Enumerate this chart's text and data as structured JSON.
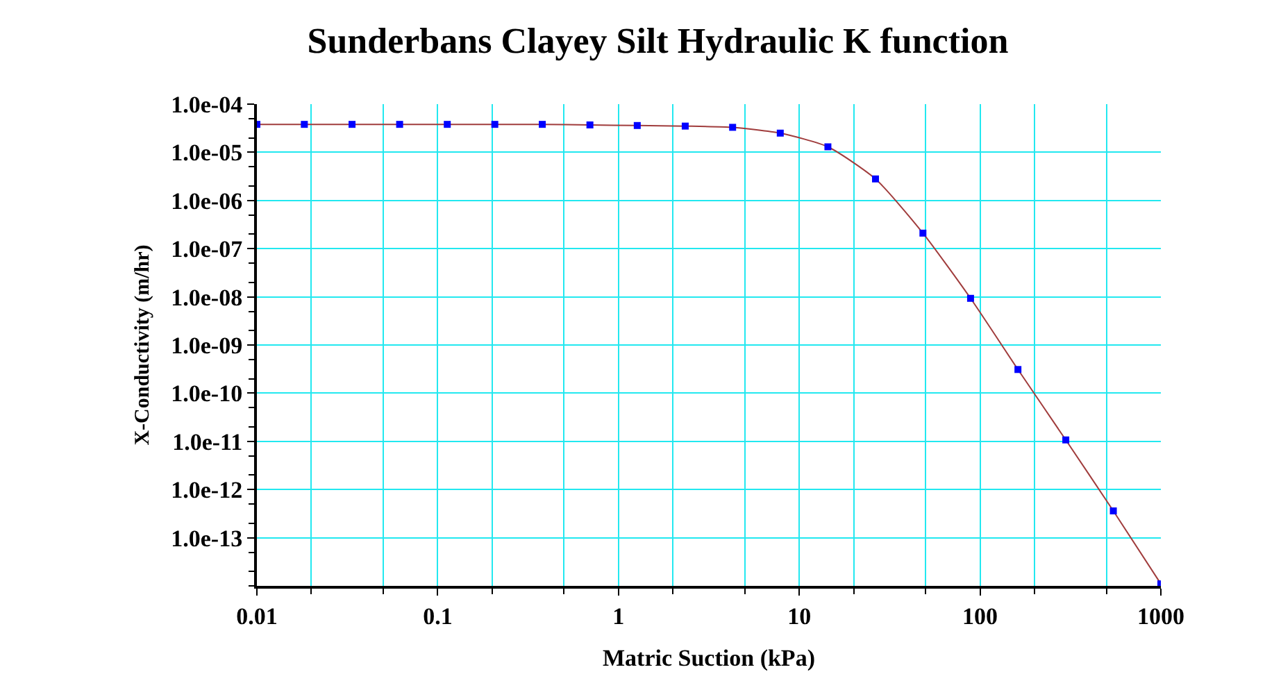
{
  "chart_data": {
    "type": "line",
    "title": "Sunderbans Clayey Silt Hydraulic K function",
    "xlabel": "Matric Suction (kPa)",
    "ylabel": "X-Conductivity (m/hr)",
    "log": "xy",
    "grid": true,
    "xlim": [
      0.01,
      1000
    ],
    "xticks": [
      0.01,
      0.1,
      1,
      10,
      100,
      1000
    ],
    "ylim": [
      1e-14,
      0.0001
    ],
    "yticks": [
      {
        "value": 0.0001,
        "label": "1.0e-04"
      },
      {
        "value": 1e-05,
        "label": "1.0e-05"
      },
      {
        "value": 1e-06,
        "label": "1.0e-06"
      },
      {
        "value": 1e-07,
        "label": "1.0e-07"
      },
      {
        "value": 1e-08,
        "label": "1.0e-08"
      },
      {
        "value": 1e-09,
        "label": "1.0e-09"
      },
      {
        "value": 1e-10,
        "label": "1.0e-10"
      },
      {
        "value": 1e-11,
        "label": "1.0e-11"
      },
      {
        "value": 1e-12,
        "label": "1.0e-12"
      },
      {
        "value": 1e-13,
        "label": "1.0e-13"
      }
    ],
    "series": [
      {
        "color": "#a03c3c",
        "marker": "none",
        "line_style": "solid",
        "x": [
          0.01,
          0.0183,
          0.0336,
          0.0616,
          0.113,
          0.207,
          0.379,
          0.695,
          1.27,
          2.34,
          4.28,
          7.85,
          14.4,
          26.4,
          48.3,
          88.6,
          162,
          298,
          546,
          1000
        ],
        "values": [
          3.8e-05,
          3.8e-05,
          3.8e-05,
          3.8e-05,
          3.8e-05,
          3.8e-05,
          3.8e-05,
          3.7e-05,
          3.6e-05,
          3.5e-05,
          3.3e-05,
          2.5e-05,
          1.3e-05,
          2.8e-06,
          2.1e-07,
          9.3e-09,
          3.1e-10,
          1.07e-11,
          3.6e-13,
          1.1e-14
        ]
      },
      {
        "type": "scatter",
        "color": "#0000ff",
        "marker": "square",
        "x": [
          0.01,
          0.0183,
          0.0336,
          0.0616,
          0.113,
          0.207,
          0.379,
          0.695,
          1.27,
          2.34,
          4.28,
          7.85,
          14.4,
          26.4,
          48.3,
          88.6,
          162,
          298,
          546,
          1000
        ],
        "values": [
          3.8e-05,
          3.8e-05,
          3.8e-05,
          3.8e-05,
          3.8e-05,
          3.8e-05,
          3.8e-05,
          3.7e-05,
          3.6e-05,
          3.5e-05,
          3.3e-05,
          2.5e-05,
          1.3e-05,
          2.8e-06,
          2.1e-07,
          9.3e-09,
          3.1e-10,
          1.07e-11,
          3.6e-13,
          1.1e-14
        ]
      }
    ]
  }
}
